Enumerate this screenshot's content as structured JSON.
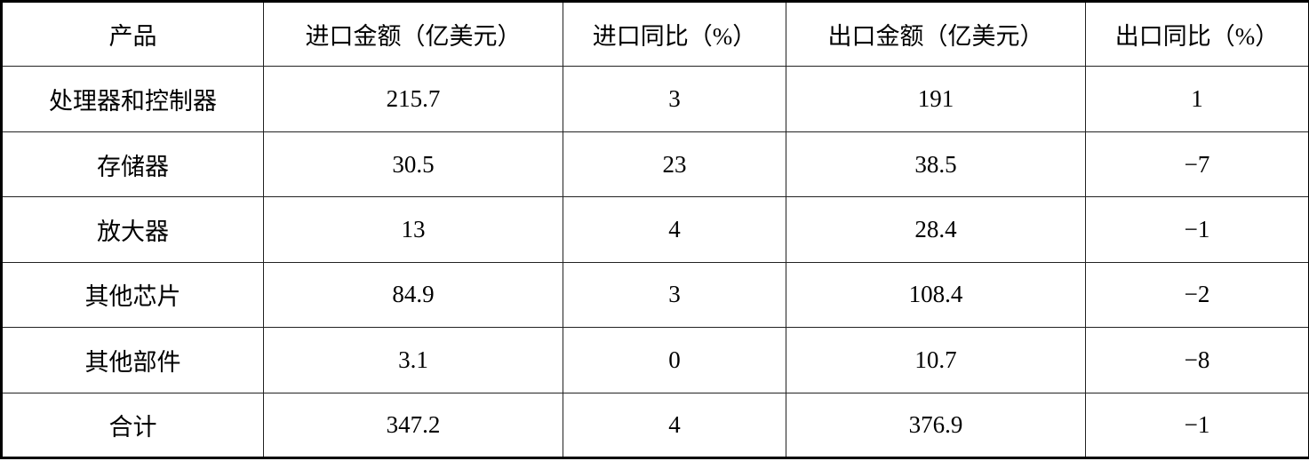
{
  "table": {
    "headers": [
      "产品",
      "进口金额（亿美元）",
      "进口同比（%）",
      "出口金额（亿美元）",
      "出口同比（%）"
    ],
    "rows": [
      [
        "处理器和控制器",
        "215.7",
        "3",
        "191",
        "1"
      ],
      [
        "存储器",
        "30.5",
        "23",
        "38.5",
        "−7"
      ],
      [
        "放大器",
        "13",
        "4",
        "28.4",
        "−1"
      ],
      [
        "其他芯片",
        "84.9",
        "3",
        "108.4",
        "−2"
      ],
      [
        "其他部件",
        "3.1",
        "0",
        "10.7",
        "−8"
      ],
      [
        "合计",
        "347.2",
        "4",
        "376.9",
        "−1"
      ]
    ]
  }
}
